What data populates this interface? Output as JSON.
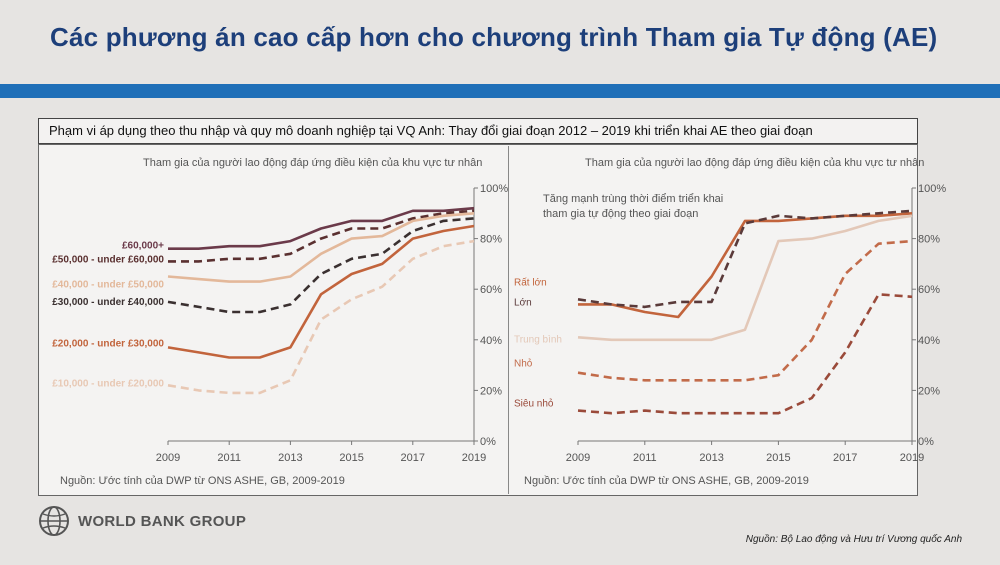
{
  "slide": {
    "title": "Các phương án cao cấp hơn cho chương trình Tham gia Tự động (AE)",
    "subtitle": "Phạm vi áp dụng theo thu nhập và quy mô doanh nghiệp tại VQ Anh: Thay đổi giai đoạn 2012 – 2019 khi triển khai AE theo giai đoạn",
    "footer_source": "Nguồn: Bộ Lao động và Hưu trí Vương quốc Anh",
    "logo_text": "WORLD BANK GROUP",
    "rule_color": "#1f6fb8",
    "title_color": "#1d3f7a"
  },
  "chart_data": [
    {
      "type": "line",
      "title": "Tham gia của người lao động đáp ứng điều kiện của khu vực tư nhân",
      "source": "Nguồn: Ước tính của DWP từ ONS ASHE, GB, 2009-2019",
      "x": [
        2009,
        2010,
        2011,
        2012,
        2013,
        2014,
        2015,
        2016,
        2017,
        2018,
        2019
      ],
      "x_ticks": [
        "2009",
        "2011",
        "2013",
        "2015",
        "2017",
        "2019"
      ],
      "y_ticks": [
        "0%",
        "20%",
        "40%",
        "60%",
        "80%",
        "100%"
      ],
      "ylim": [
        0,
        100
      ],
      "legend": "left",
      "series": [
        {
          "name": "£60,000+",
          "color": "#6b3a4a",
          "dash": "solid",
          "values": [
            76,
            76,
            77,
            77,
            79,
            84,
            87,
            87,
            91,
            91,
            92
          ]
        },
        {
          "name": "£50,000 - under £60,000",
          "color": "#5a3030",
          "dash": "dashed",
          "values": [
            71,
            71,
            72,
            72,
            74,
            80,
            84,
            84,
            88,
            90,
            91
          ]
        },
        {
          "name": "£40,000 - under £50,000",
          "color": "#e3b89a",
          "dash": "solid",
          "values": [
            65,
            64,
            63,
            63,
            65,
            74,
            80,
            81,
            87,
            89,
            90
          ]
        },
        {
          "name": "£30,000 - under £40,000",
          "color": "#3a3030",
          "dash": "dashed",
          "values": [
            55,
            53,
            51,
            51,
            54,
            66,
            72,
            74,
            83,
            87,
            88
          ]
        },
        {
          "name": "£20,000 - under £30,000",
          "color": "#c2643c",
          "dash": "solid",
          "values": [
            37,
            35,
            33,
            33,
            37,
            58,
            66,
            70,
            80,
            83,
            85
          ]
        },
        {
          "name": "£10,000 - under £20,000",
          "color": "#e8c8b4",
          "dash": "dashed",
          "values": [
            22,
            20,
            19,
            19,
            24,
            48,
            56,
            61,
            72,
            77,
            79
          ]
        }
      ]
    },
    {
      "type": "line",
      "title": "Tham gia của người lao động đáp ứng điều kiện của khu vực tư nhân",
      "annotation": "Tăng mạnh trùng thời điểm triển khai tham gia tự động theo giai đoạn",
      "source": "Nguồn: Ước tính của DWP từ ONS ASHE, GB, 2009-2019",
      "x": [
        2009,
        2010,
        2011,
        2012,
        2013,
        2014,
        2015,
        2016,
        2017,
        2018,
        2019
      ],
      "x_ticks": [
        "2009",
        "2011",
        "2013",
        "2015",
        "2017",
        "2019"
      ],
      "y_ticks": [
        "0%",
        "20%",
        "40%",
        "60%",
        "80%",
        "100%"
      ],
      "ylim": [
        0,
        100
      ],
      "legend": "left",
      "series": [
        {
          "name": "Rất lớn",
          "color": "#c2643c",
          "dash": "solid",
          "values": [
            54,
            54,
            51,
            49,
            65,
            87,
            87,
            88,
            89,
            89,
            90
          ]
        },
        {
          "name": "Lớn",
          "color": "#5a3a3a",
          "dash": "dashed",
          "values": [
            56,
            54,
            53,
            55,
            55,
            86,
            89,
            88,
            89,
            90,
            91
          ]
        },
        {
          "name": "Trung bình",
          "color": "#e3c8b8",
          "dash": "solid",
          "values": [
            41,
            40,
            40,
            40,
            40,
            44,
            79,
            80,
            83,
            87,
            89
          ]
        },
        {
          "name": "Nhỏ",
          "color": "#c26b4a",
          "dash": "dashed",
          "values": [
            27,
            25,
            24,
            24,
            24,
            24,
            26,
            40,
            66,
            78,
            79
          ]
        },
        {
          "name": "Siêu nhỏ",
          "color": "#9a4a3a",
          "dash": "dashed",
          "values": [
            12,
            11,
            12,
            11,
            11,
            11,
            11,
            17,
            35,
            58,
            57
          ]
        }
      ]
    }
  ]
}
